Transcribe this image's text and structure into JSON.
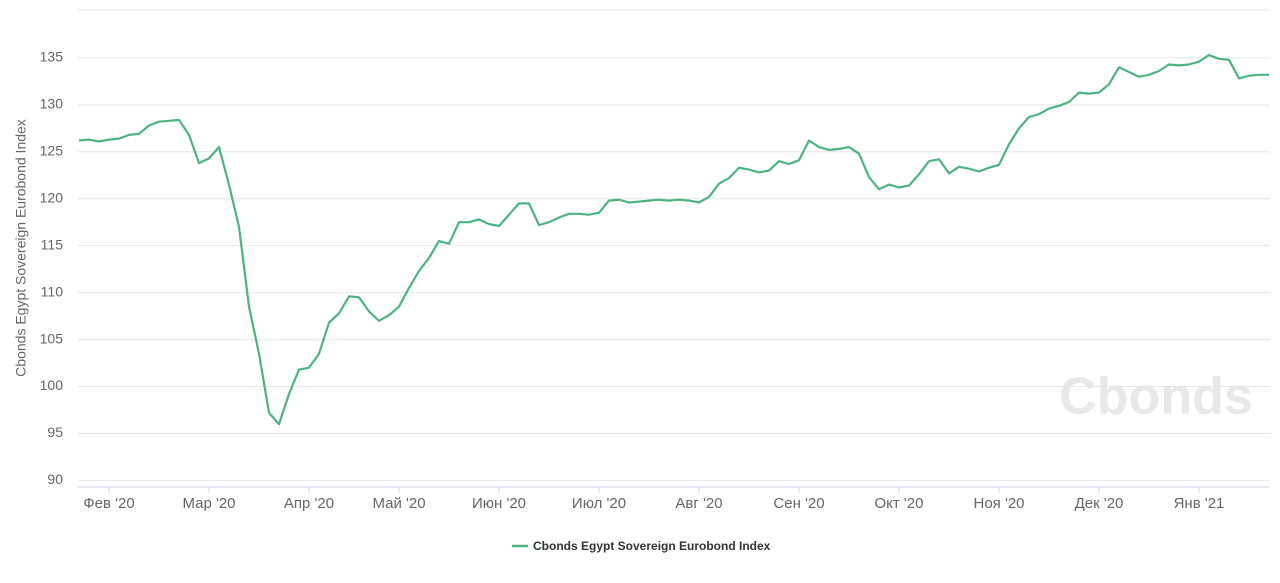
{
  "chart_data": {
    "type": "line",
    "y_label": "Cbonds Egypt Sovereign Eurobond Index",
    "watermark": "Cbonds",
    "categories": [
      null,
      null,
      null,
      "Фев '20",
      null,
      null,
      null,
      null,
      null,
      null,
      null,
      null,
      null,
      "Мар '20",
      null,
      null,
      null,
      null,
      null,
      null,
      null,
      null,
      null,
      "Апр '20",
      null,
      null,
      null,
      null,
      null,
      null,
      null,
      null,
      "Май '20",
      null,
      null,
      null,
      null,
      null,
      null,
      null,
      null,
      null,
      "Июн '20",
      null,
      null,
      null,
      null,
      null,
      null,
      null,
      null,
      null,
      "Июл '20",
      null,
      null,
      null,
      null,
      null,
      null,
      null,
      null,
      null,
      "Авг '20",
      null,
      null,
      null,
      null,
      null,
      null,
      null,
      null,
      null,
      "Сен '20",
      null,
      null,
      null,
      null,
      null,
      null,
      null,
      null,
      null,
      "Окт '20",
      null,
      null,
      null,
      null,
      null,
      null,
      null,
      null,
      null,
      "Ноя '20",
      null,
      null,
      null,
      null,
      null,
      null,
      null,
      null,
      null,
      "Дек '20",
      null,
      null,
      null,
      null,
      null,
      null,
      null,
      null,
      null,
      "Янв '21",
      null,
      null,
      null,
      null,
      null,
      null,
      null
    ],
    "series": [
      {
        "name": "Cbonds Egypt Sovereign Eurobond Index",
        "color": "#4cb381",
        "values": [
          126.2,
          126.3,
          126.1,
          126.3,
          126.4,
          126.8,
          126.9,
          127.8,
          128.2,
          128.3,
          128.4,
          126.8,
          123.8,
          124.3,
          125.5,
          121.5,
          117,
          108.5,
          103.5,
          97.2,
          96,
          99.2,
          101.8,
          102,
          103.5,
          106.8,
          107.8,
          109.6,
          109.5,
          108,
          107,
          107.6,
          108.5,
          110.5,
          112.3,
          113.7,
          115.5,
          115.2,
          117.5,
          117.5,
          117.8,
          117.3,
          117.1,
          118.3,
          119.5,
          119.5,
          117.2,
          117.5,
          118,
          118.4,
          118.4,
          118.3,
          118.5,
          119.8,
          119.9,
          119.6,
          119.7,
          119.8,
          119.9,
          119.8,
          119.9,
          119.8,
          119.6,
          120.2,
          121.6,
          122.2,
          123.3,
          123.1,
          122.8,
          123,
          124,
          123.7,
          124.1,
          126.2,
          125.5,
          125.2,
          125.3,
          125.5,
          124.8,
          122.3,
          121,
          121.5,
          121.2,
          121.4,
          122.6,
          124,
          124.2,
          122.7,
          123.4,
          123.2,
          122.9,
          123.3,
          123.6,
          125.8,
          127.5,
          128.7,
          129,
          129.6,
          129.9,
          130.3,
          131.3,
          131.2,
          131.3,
          132.2,
          134,
          133.5,
          133,
          133.2,
          133.6,
          134.3,
          134.2,
          134.3,
          134.6,
          135.3,
          134.9,
          134.8,
          132.8,
          133.1,
          133.2,
          133.2
        ]
      }
    ],
    "ylim": [
      89.3,
      140.1
    ],
    "yticks": [
      90,
      95,
      100,
      105,
      110,
      115,
      120,
      125,
      130,
      135
    ],
    "grid": true
  }
}
